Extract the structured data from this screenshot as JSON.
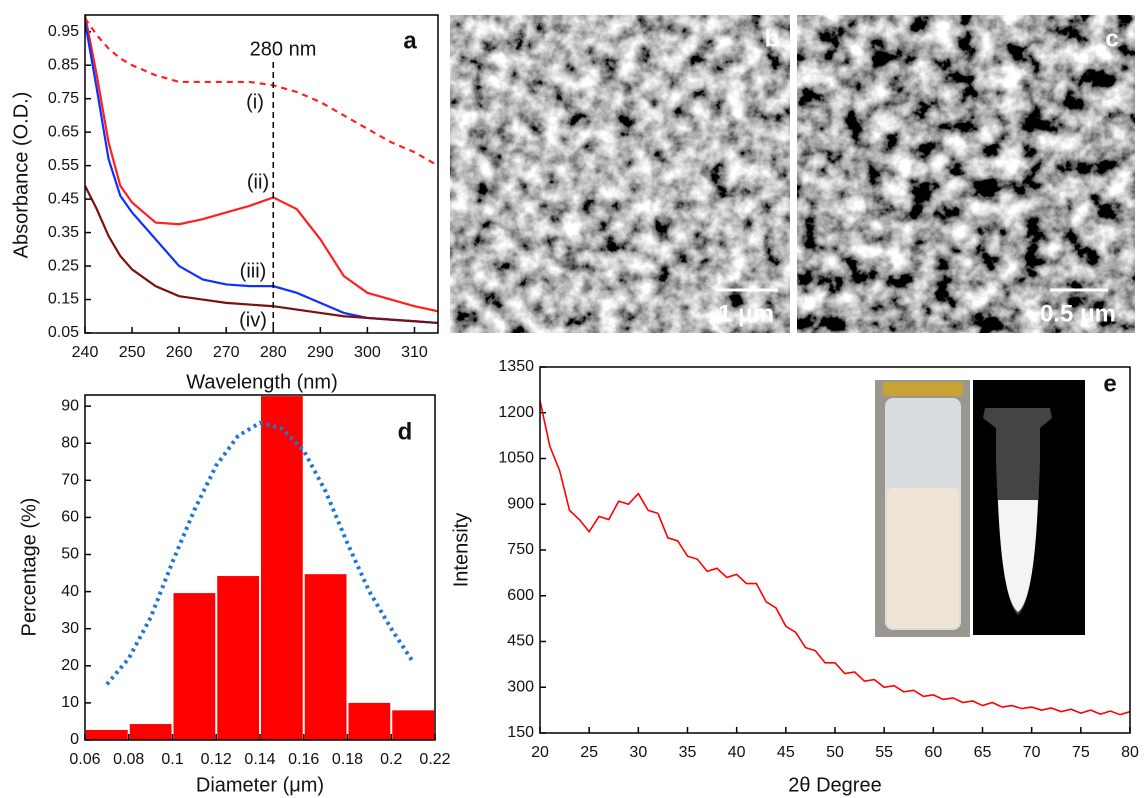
{
  "chart_data": [
    {
      "type": "line",
      "panel_label": "a",
      "xlabel": "Wavelength (nm)",
      "ylabel": "Absorbance (O.D.)",
      "xlim": [
        240,
        315
      ],
      "ylim": [
        0.05,
        1.0
      ],
      "xticks": [
        240,
        250,
        260,
        270,
        280,
        290,
        300,
        310
      ],
      "yticks": [
        0.05,
        0.15,
        0.25,
        0.35,
        0.45,
        0.55,
        0.65,
        0.75,
        0.85,
        0.95
      ],
      "annotation": "280 nm",
      "vline": 280,
      "x": [
        240,
        242.5,
        245,
        247.5,
        250,
        255,
        260,
        265,
        270,
        275,
        280,
        285,
        290,
        295,
        300,
        305,
        310,
        315
      ],
      "series": [
        {
          "name": "(i)",
          "color": "#ff2020",
          "style": "dashed",
          "values": [
            0.99,
            0.94,
            0.9,
            0.87,
            0.85,
            0.82,
            0.8,
            0.8,
            0.8,
            0.8,
            0.79,
            0.77,
            0.74,
            0.7,
            0.66,
            0.62,
            0.59,
            0.55
          ]
        },
        {
          "name": "(ii)",
          "color": "#ff2020",
          "style": "solid",
          "values": [
            1.0,
            0.82,
            0.62,
            0.49,
            0.44,
            0.38,
            0.375,
            0.39,
            0.41,
            0.43,
            0.455,
            0.42,
            0.33,
            0.22,
            0.17,
            0.15,
            0.13,
            0.115
          ]
        },
        {
          "name": "(iii)",
          "color": "#1030ff",
          "style": "solid",
          "values": [
            0.98,
            0.78,
            0.57,
            0.46,
            0.41,
            0.33,
            0.25,
            0.21,
            0.195,
            0.19,
            0.19,
            0.17,
            0.14,
            0.11,
            0.095,
            0.09,
            0.085,
            0.08
          ]
        },
        {
          "name": "(iv)",
          "color": "#7a1010",
          "style": "solid",
          "values": [
            0.49,
            0.42,
            0.34,
            0.28,
            0.24,
            0.19,
            0.16,
            0.15,
            0.14,
            0.135,
            0.13,
            0.12,
            0.11,
            0.1,
            0.095,
            0.09,
            0.085,
            0.08
          ]
        }
      ]
    },
    {
      "type": "histogram",
      "panel_label": "d",
      "xlabel": "Diameter (μm)",
      "ylabel": "Percentage (%)",
      "xlim": [
        0.06,
        0.22
      ],
      "ylim": [
        0,
        93
      ],
      "xticks": [
        0.06,
        0.08,
        0.1,
        0.12,
        0.14,
        0.16,
        0.18,
        0.2,
        0.22
      ],
      "yticks": [
        0,
        10,
        20,
        30,
        40,
        50,
        60,
        70,
        80,
        90
      ],
      "bins": [
        0.06,
        0.08,
        0.1,
        0.12,
        0.14,
        0.16,
        0.18,
        0.2,
        0.22
      ],
      "values": [
        2.7,
        4.3,
        39.6,
        44.2,
        92.7,
        44.7,
        10,
        8
      ],
      "color": "#ff0000",
      "fit": {
        "color": "#1f77d4",
        "style": "dotted",
        "x": [
          0.07,
          0.08,
          0.09,
          0.1,
          0.11,
          0.12,
          0.13,
          0.14,
          0.15,
          0.16,
          0.17,
          0.18,
          0.19,
          0.2,
          0.21
        ],
        "values": [
          15,
          22,
          33,
          48,
          62,
          74,
          82,
          85.5,
          84,
          78,
          67,
          53,
          40,
          30,
          21
        ]
      }
    },
    {
      "type": "line",
      "panel_label": "e",
      "xlabel": "2θ Degree",
      "ylabel": "Intensity",
      "xlim": [
        20,
        80
      ],
      "ylim": [
        150,
        1350
      ],
      "xticks": [
        20,
        25,
        30,
        35,
        40,
        45,
        50,
        55,
        60,
        65,
        70,
        75,
        80
      ],
      "yticks": [
        150,
        300,
        450,
        600,
        750,
        900,
        1050,
        1200,
        1350
      ],
      "x": [
        20,
        21,
        22,
        23,
        24,
        25,
        26,
        27,
        28,
        29,
        30,
        31,
        32,
        33,
        34,
        35,
        36,
        37,
        38,
        39,
        40,
        41,
        42,
        43,
        44,
        45,
        46,
        47,
        48,
        49,
        50,
        51,
        52,
        53,
        54,
        55,
        56,
        57,
        58,
        59,
        60,
        61,
        62,
        63,
        64,
        65,
        66,
        67,
        68,
        69,
        70,
        71,
        72,
        73,
        74,
        75,
        76,
        77,
        78,
        79,
        80
      ],
      "series": [
        {
          "color": "#ff0000",
          "style": "solid",
          "values": [
            1240,
            1090,
            1010,
            880,
            850,
            810,
            860,
            850,
            910,
            900,
            935,
            880,
            870,
            790,
            780,
            730,
            720,
            680,
            690,
            660,
            670,
            640,
            640,
            580,
            560,
            500,
            480,
            430,
            420,
            380,
            380,
            345,
            350,
            320,
            325,
            300,
            305,
            285,
            290,
            270,
            275,
            260,
            265,
            250,
            255,
            240,
            250,
            235,
            240,
            230,
            235,
            225,
            232,
            220,
            228,
            215,
            225,
            212,
            222,
            210,
            220
          ]
        }
      ]
    }
  ],
  "images": [
    {
      "label": "b",
      "scale_bar": "1 μm"
    },
    {
      "label": "c",
      "scale_bar": "0.5 μm"
    }
  ]
}
